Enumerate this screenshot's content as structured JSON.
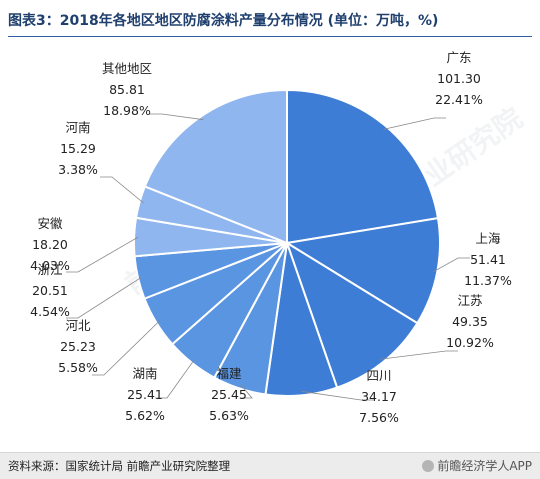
{
  "header": {
    "title": "图表3：2018年各地区地区防腐涂料产量分布情况 (单位：万吨，%)"
  },
  "footer": {
    "source": "资料来源：国家统计局 前瞻产业研究院整理",
    "brand": "前瞻经济学人APP"
  },
  "watermark": {
    "text": "前瞻产业研究院"
  },
  "colors": {
    "slice_dark": "#3d7dd6",
    "slice_mid": "#5a95e2",
    "slice_light": "#8fb6ee",
    "slice_stroke": "#ffffff",
    "leader": "#888888"
  },
  "chart_data": {
    "type": "pie",
    "unit": "万吨",
    "slices": [
      {
        "name": "广东",
        "value": 101.3,
        "value_label": "101.30",
        "percent_label": "22.41%"
      },
      {
        "name": "上海",
        "value": 51.41,
        "value_label": "51.41",
        "percent_label": "11.37%"
      },
      {
        "name": "江苏",
        "value": 49.35,
        "value_label": "49.35",
        "percent_label": "10.92%"
      },
      {
        "name": "四川",
        "value": 34.17,
        "value_label": "34.17",
        "percent_label": "7.56%"
      },
      {
        "name": "福建",
        "value": 25.45,
        "value_label": "25.45",
        "percent_label": "5.63%"
      },
      {
        "name": "湖南",
        "value": 25.41,
        "value_label": "25.41",
        "percent_label": "5.62%"
      },
      {
        "name": "河北",
        "value": 25.23,
        "value_label": "25.23",
        "percent_label": "5.58%"
      },
      {
        "name": "浙江",
        "value": 20.51,
        "value_label": "20.51",
        "percent_label": "4.54%"
      },
      {
        "name": "安徽",
        "value": 18.2,
        "value_label": "18.20",
        "percent_label": "4.03%"
      },
      {
        "name": "河南",
        "value": 15.29,
        "value_label": "15.29",
        "percent_label": "3.38%"
      },
      {
        "name": "其他地区",
        "value": 85.81,
        "value_label": "85.81",
        "percent_label": "18.98%"
      }
    ]
  }
}
